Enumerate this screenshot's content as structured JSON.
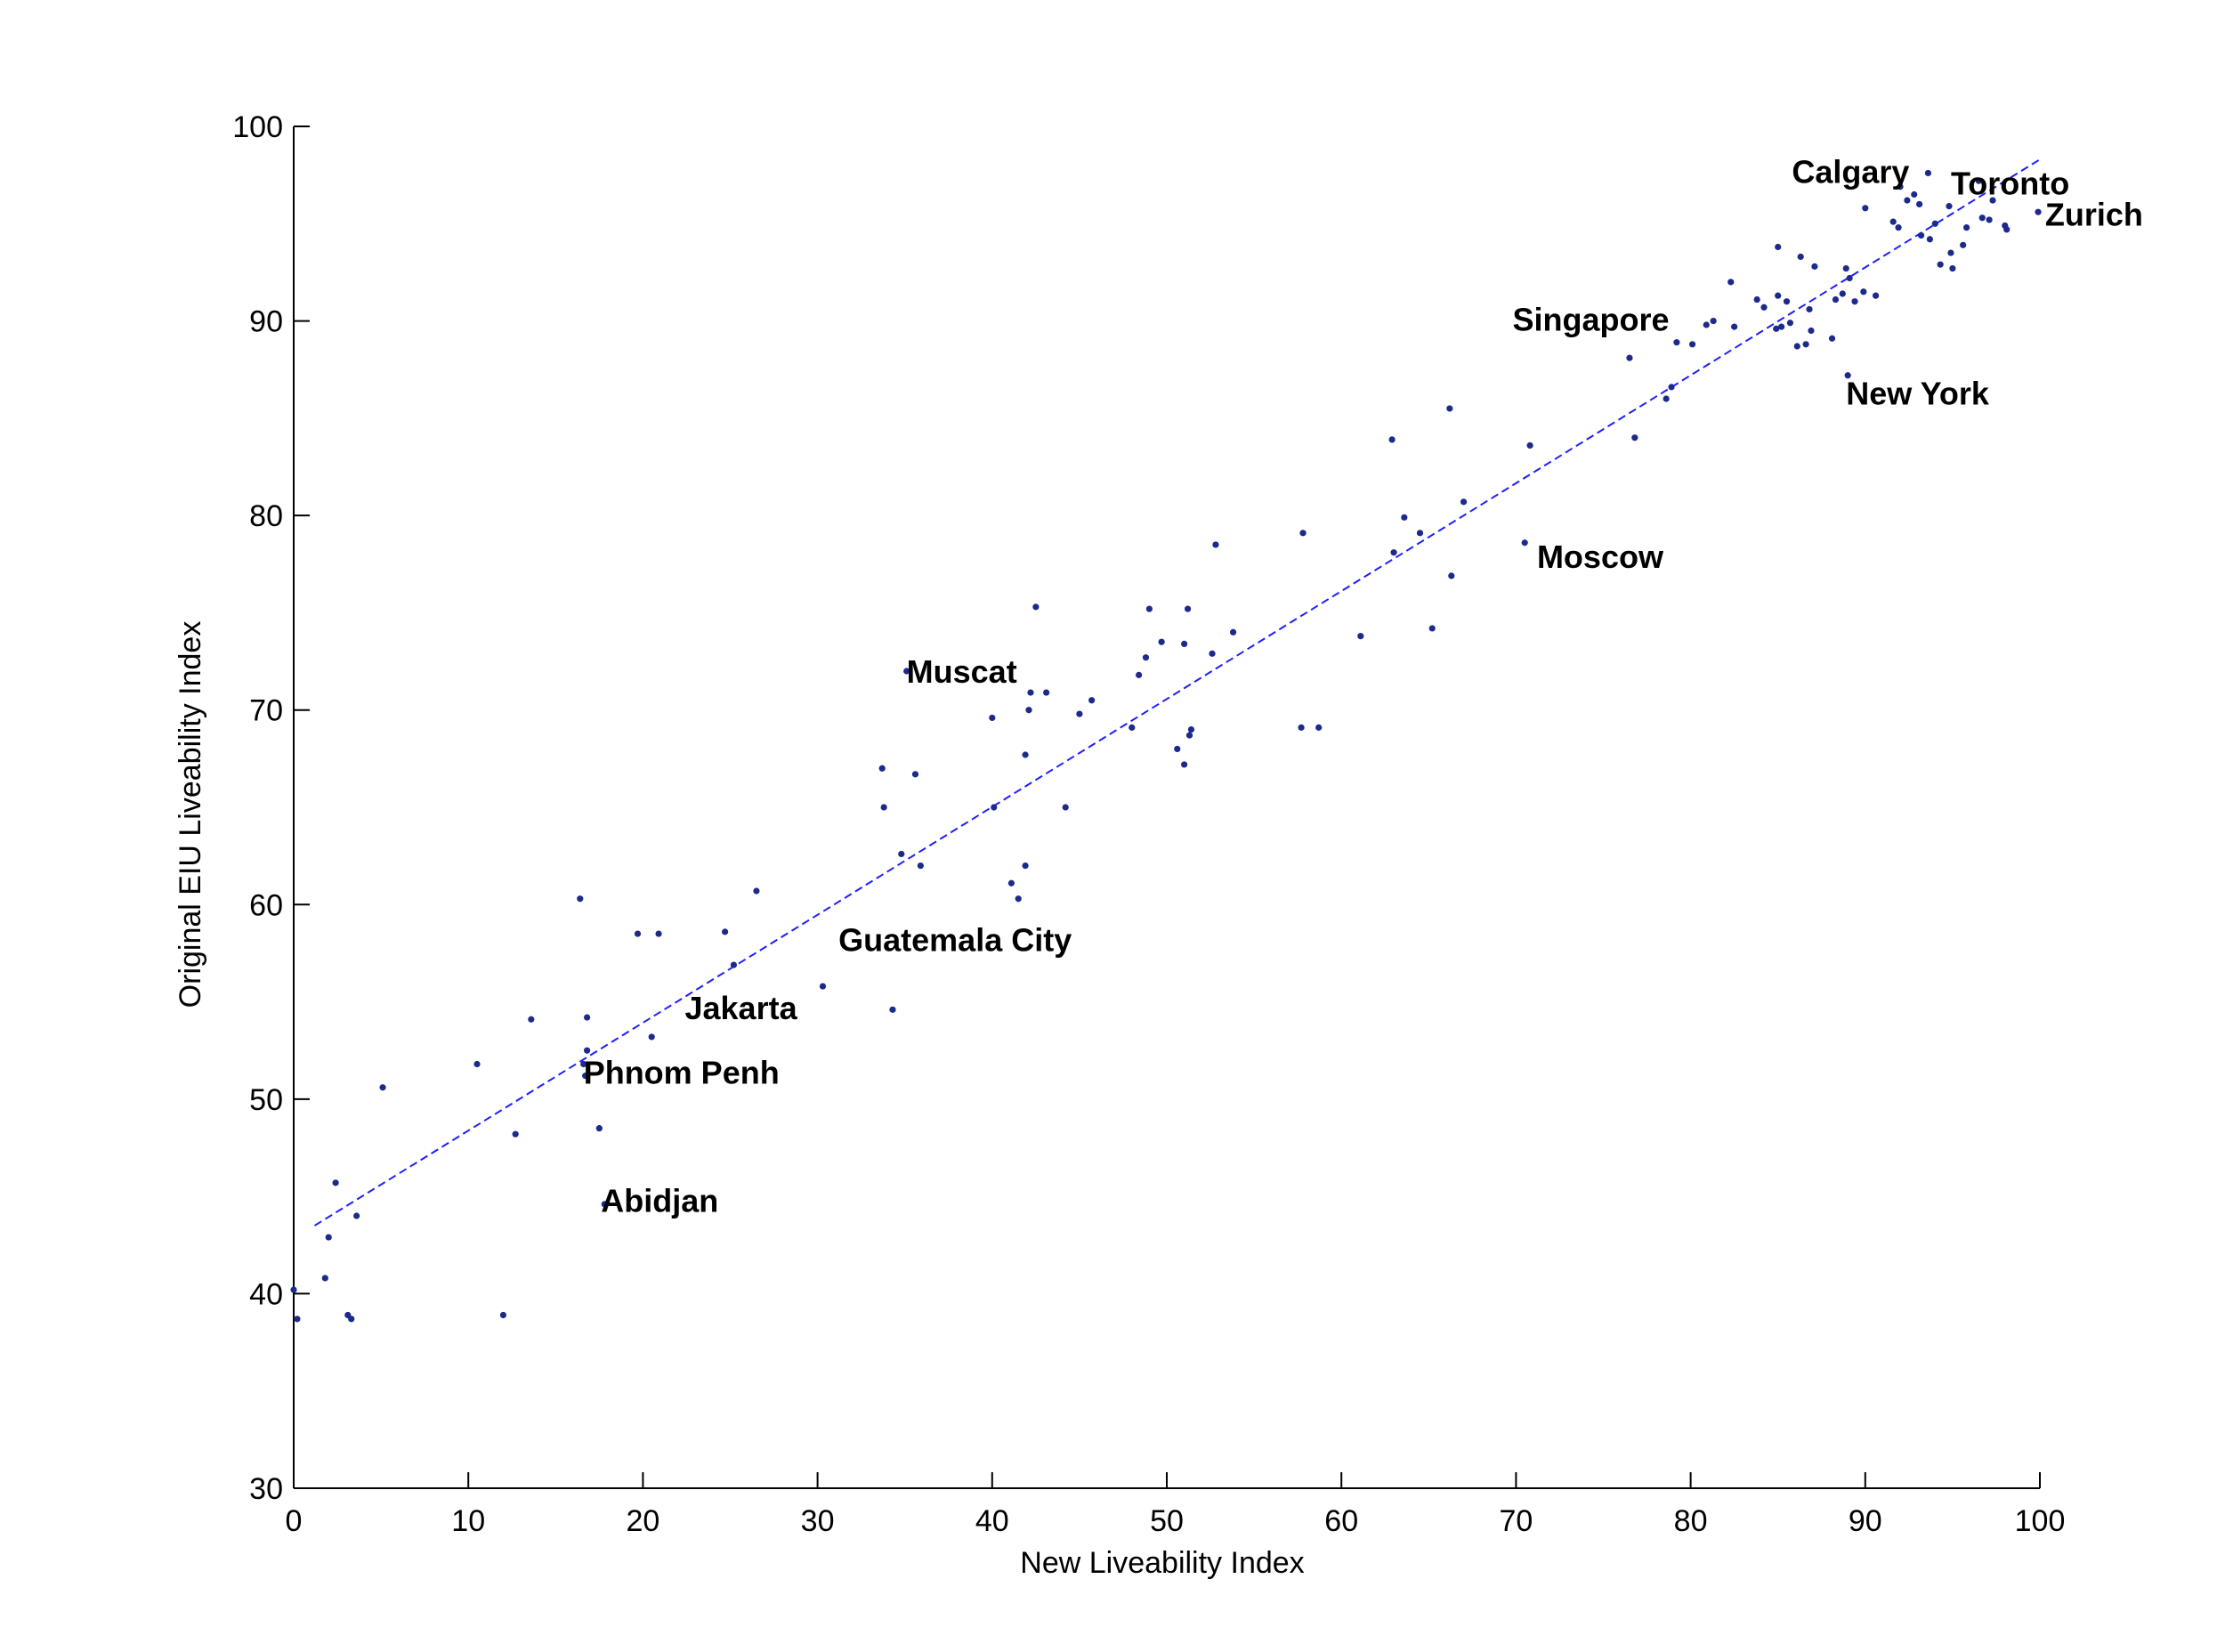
{
  "chart_data": {
    "type": "scatter",
    "title": "",
    "xlabel": "New Liveability Index",
    "ylabel": "Original EIU Liveability Index",
    "xlim": [
      0,
      100
    ],
    "ylim": [
      30,
      100
    ],
    "xticks": [
      0,
      10,
      20,
      30,
      40,
      50,
      60,
      70,
      80,
      90,
      100
    ],
    "yticks": [
      30,
      40,
      50,
      60,
      70,
      80,
      90,
      100
    ],
    "grid": false,
    "colors": {
      "points": "#1c2a8c",
      "fit_line": "#1f1fff",
      "axis": "#000000"
    },
    "fit_line": {
      "style": "dashed",
      "x": [
        1.2,
        100
      ],
      "y": [
        43.5,
        98.3
      ]
    },
    "points": [
      [
        0.0,
        40.2
      ],
      [
        0.2,
        38.7
      ],
      [
        1.8,
        40.8
      ],
      [
        2.0,
        42.9
      ],
      [
        2.4,
        45.7
      ],
      [
        3.1,
        38.9
      ],
      [
        3.3,
        38.7
      ],
      [
        3.6,
        44.0
      ],
      [
        5.1,
        50.6
      ],
      [
        10.5,
        51.8
      ],
      [
        12.0,
        38.9
      ],
      [
        12.7,
        48.2
      ],
      [
        13.6,
        54.1
      ],
      [
        16.4,
        60.3
      ],
      [
        16.6,
        51.8
      ],
      [
        16.7,
        51.2
      ],
      [
        16.8,
        52.5
      ],
      [
        16.8,
        54.2
      ],
      [
        17.5,
        48.5
      ],
      [
        17.8,
        44.6
      ],
      [
        19.7,
        58.5
      ],
      [
        20.5,
        53.2
      ],
      [
        20.9,
        58.5
      ],
      [
        24.7,
        58.6
      ],
      [
        25.2,
        56.9
      ],
      [
        26.5,
        60.7
      ],
      [
        30.3,
        55.8
      ],
      [
        33.7,
        67.0
      ],
      [
        33.8,
        65.0
      ],
      [
        34.3,
        54.6
      ],
      [
        34.8,
        62.6
      ],
      [
        35.1,
        72.0
      ],
      [
        35.6,
        66.7
      ],
      [
        35.9,
        62.0
      ],
      [
        40.0,
        69.6
      ],
      [
        40.1,
        65.0
      ],
      [
        41.1,
        61.1
      ],
      [
        41.5,
        60.3
      ],
      [
        41.9,
        62.0
      ],
      [
        41.9,
        67.7
      ],
      [
        42.1,
        70.0
      ],
      [
        42.2,
        70.9
      ],
      [
        42.5,
        75.3
      ],
      [
        43.1,
        70.9
      ],
      [
        44.2,
        65.0
      ],
      [
        45.0,
        69.8
      ],
      [
        45.7,
        70.5
      ],
      [
        48.0,
        69.1
      ],
      [
        48.4,
        71.8
      ],
      [
        48.8,
        72.7
      ],
      [
        49.0,
        75.2
      ],
      [
        49.7,
        73.5
      ],
      [
        50.6,
        68.0
      ],
      [
        51.0,
        67.2
      ],
      [
        51.0,
        73.4
      ],
      [
        51.2,
        75.2
      ],
      [
        51.3,
        68.7
      ],
      [
        51.4,
        69.0
      ],
      [
        52.6,
        72.9
      ],
      [
        52.8,
        78.5
      ],
      [
        53.8,
        74.0
      ],
      [
        57.7,
        69.1
      ],
      [
        57.8,
        79.1
      ],
      [
        58.7,
        69.1
      ],
      [
        61.1,
        73.8
      ],
      [
        62.9,
        83.9
      ],
      [
        63.0,
        78.1
      ],
      [
        63.6,
        79.9
      ],
      [
        64.5,
        79.1
      ],
      [
        65.2,
        74.2
      ],
      [
        66.2,
        85.5
      ],
      [
        66.3,
        76.9
      ],
      [
        67.0,
        80.7
      ],
      [
        70.5,
        78.6
      ],
      [
        70.8,
        83.6
      ],
      [
        76.5,
        88.1
      ],
      [
        76.8,
        84.0
      ],
      [
        78.6,
        86.0
      ],
      [
        78.9,
        86.6
      ],
      [
        79.2,
        88.9
      ],
      [
        80.1,
        88.8
      ],
      [
        80.9,
        89.8
      ],
      [
        81.3,
        90.0
      ],
      [
        82.3,
        92.0
      ],
      [
        82.5,
        89.7
      ],
      [
        83.8,
        91.1
      ],
      [
        84.2,
        90.7
      ],
      [
        84.9,
        89.6
      ],
      [
        85.0,
        93.8
      ],
      [
        85.0,
        91.3
      ],
      [
        85.2,
        89.7
      ],
      [
        85.5,
        91.0
      ],
      [
        85.7,
        89.9
      ],
      [
        86.1,
        88.7
      ],
      [
        86.3,
        93.3
      ],
      [
        86.6,
        88.8
      ],
      [
        86.8,
        90.6
      ],
      [
        86.9,
        89.5
      ],
      [
        87.1,
        92.8
      ],
      [
        88.1,
        89.1
      ],
      [
        88.3,
        91.1
      ],
      [
        88.7,
        91.4
      ],
      [
        88.9,
        92.7
      ],
      [
        89.0,
        87.2
      ],
      [
        89.1,
        92.2
      ],
      [
        89.4,
        91.0
      ],
      [
        89.9,
        91.5
      ],
      [
        90.0,
        95.8
      ],
      [
        90.6,
        91.3
      ],
      [
        91.6,
        95.1
      ],
      [
        91.9,
        94.8
      ],
      [
        92.0,
        96.9
      ],
      [
        92.4,
        96.2
      ],
      [
        92.8,
        96.5
      ],
      [
        93.1,
        96.0
      ],
      [
        93.2,
        94.4
      ],
      [
        93.6,
        97.6
      ],
      [
        93.7,
        94.2
      ],
      [
        94.0,
        95.0
      ],
      [
        94.3,
        92.9
      ],
      [
        94.8,
        95.9
      ],
      [
        94.9,
        93.5
      ],
      [
        95.0,
        92.7
      ],
      [
        95.6,
        93.9
      ],
      [
        95.8,
        94.8
      ],
      [
        96.5,
        97.2
      ],
      [
        96.7,
        95.3
      ],
      [
        97.1,
        95.2
      ],
      [
        97.3,
        96.2
      ],
      [
        98.0,
        94.9
      ],
      [
        98.1,
        94.7
      ],
      [
        99.9,
        95.6
      ]
    ],
    "annotations": [
      {
        "text": "Calgary",
        "x": 85.8,
        "y": 97.1
      },
      {
        "text": "Toronto",
        "x": 94.9,
        "y": 96.5
      },
      {
        "text": "Zurich",
        "x": 100.3,
        "y": 94.9
      },
      {
        "text": "Singapore",
        "x": 69.8,
        "y": 89.5
      },
      {
        "text": "New York",
        "x": 88.9,
        "y": 85.7
      },
      {
        "text": "Moscow",
        "x": 71.2,
        "y": 77.3
      },
      {
        "text": "Muscat",
        "x": 35.1,
        "y": 71.4
      },
      {
        "text": "Guatemala City",
        "x": 31.2,
        "y": 57.6
      },
      {
        "text": "Jakarta",
        "x": 22.4,
        "y": 54.1
      },
      {
        "text": "Phnom Penh",
        "x": 16.6,
        "y": 50.8
      },
      {
        "text": "Abidjan",
        "x": 17.6,
        "y": 44.2
      }
    ]
  }
}
